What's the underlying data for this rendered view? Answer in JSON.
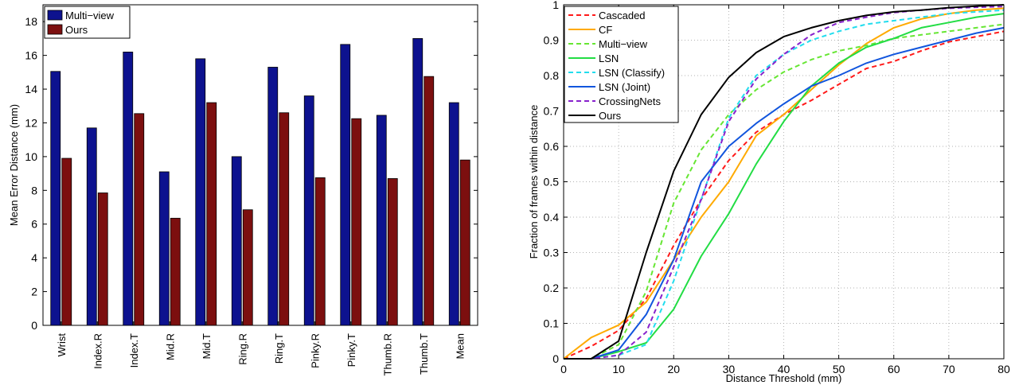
{
  "chart_data": [
    {
      "type": "bar",
      "title": "",
      "xlabel": "",
      "ylabel": "Mean Error Distance (mm)",
      "ylim": [
        0,
        19
      ],
      "yticks": [
        0,
        2,
        4,
        6,
        8,
        10,
        12,
        14,
        16,
        18
      ],
      "categories": [
        "Wrist",
        "Index.R",
        "Index.T",
        "Mid.R",
        "Mid.T",
        "Ring.R",
        "Ring.T",
        "Pinky.R",
        "Pinky.T",
        "Thumb.R",
        "Thumb.T",
        "Mean"
      ],
      "series": [
        {
          "name": "Multi−view",
          "color": "#0d128f",
          "values": [
            15.05,
            11.7,
            16.2,
            9.1,
            15.8,
            10.0,
            15.3,
            13.6,
            16.65,
            12.45,
            17.0,
            13.2
          ]
        },
        {
          "name": "Ours",
          "color": "#7c0f0f",
          "values": [
            9.9,
            7.85,
            12.55,
            6.35,
            13.2,
            6.85,
            12.6,
            8.75,
            12.25,
            8.7,
            14.75,
            9.8
          ]
        }
      ],
      "legend": "top-left",
      "grid": false
    },
    {
      "type": "line",
      "title": "",
      "xlabel": "Distance Threshold (mm)",
      "ylabel": "Fraction of frames within distance",
      "xlim": [
        0,
        80
      ],
      "ylim": [
        0,
        1
      ],
      "xticks": [
        0,
        10,
        20,
        30,
        40,
        50,
        60,
        70,
        80
      ],
      "yticks": [
        "0",
        "0.1",
        "0.2",
        "0.3",
        "0.4",
        "0.5",
        "0.6",
        "0.7",
        "0.8",
        "0.9",
        "1"
      ],
      "x": [
        0,
        5,
        10,
        15,
        20,
        25,
        30,
        35,
        40,
        45,
        50,
        55,
        60,
        65,
        70,
        75,
        80
      ],
      "grid": true,
      "legend": "top-left",
      "series": [
        {
          "name": "Cascaded",
          "color": "#ff1a1a",
          "dash": "dashed",
          "values": [
            0,
            0.035,
            0.08,
            0.17,
            0.32,
            0.45,
            0.56,
            0.64,
            0.69,
            0.73,
            0.775,
            0.82,
            0.84,
            0.87,
            0.895,
            0.91,
            0.925
          ]
        },
        {
          "name": "CF",
          "color": "#ffaa00",
          "dash": "solid",
          "values": [
            0,
            0.06,
            0.095,
            0.16,
            0.28,
            0.4,
            0.5,
            0.63,
            0.69,
            0.76,
            0.83,
            0.89,
            0.935,
            0.96,
            0.975,
            0.985,
            0.99
          ]
        },
        {
          "name": "Multi−view",
          "color": "#66e633",
          "dash": "dashed",
          "values": [
            0,
            0,
            0.04,
            0.19,
            0.44,
            0.59,
            0.69,
            0.76,
            0.81,
            0.845,
            0.87,
            0.885,
            0.905,
            0.915,
            0.925,
            0.935,
            0.945
          ]
        },
        {
          "name": "LSN",
          "color": "#22dd44",
          "dash": "solid",
          "values": [
            0,
            0,
            0.02,
            0.045,
            0.14,
            0.29,
            0.41,
            0.55,
            0.67,
            0.77,
            0.835,
            0.88,
            0.905,
            0.935,
            0.95,
            0.965,
            0.975
          ]
        },
        {
          "name": "LSN (Classify)",
          "color": "#22ddee",
          "dash": "dashed",
          "values": [
            0,
            0,
            0.01,
            0.04,
            0.22,
            0.45,
            0.68,
            0.8,
            0.86,
            0.9,
            0.925,
            0.945,
            0.955,
            0.965,
            0.975,
            0.98,
            0.985
          ]
        },
        {
          "name": "LSN (Joint)",
          "color": "#1155dd",
          "dash": "solid",
          "values": [
            0,
            0,
            0.025,
            0.125,
            0.28,
            0.5,
            0.6,
            0.665,
            0.72,
            0.77,
            0.8,
            0.835,
            0.86,
            0.88,
            0.9,
            0.92,
            0.935
          ]
        },
        {
          "name": "CrossingNets",
          "color": "#8822cc",
          "dash": "dashed",
          "values": [
            0,
            0,
            0.01,
            0.075,
            0.26,
            0.45,
            0.67,
            0.79,
            0.86,
            0.915,
            0.95,
            0.965,
            0.978,
            0.985,
            0.99,
            0.993,
            0.995
          ]
        },
        {
          "name": "Ours",
          "color": "#000000",
          "dash": "solid",
          "values": [
            0,
            0,
            0.05,
            0.3,
            0.53,
            0.69,
            0.795,
            0.865,
            0.91,
            0.935,
            0.955,
            0.97,
            0.98,
            0.985,
            0.992,
            0.996,
            1.0
          ]
        }
      ]
    }
  ]
}
